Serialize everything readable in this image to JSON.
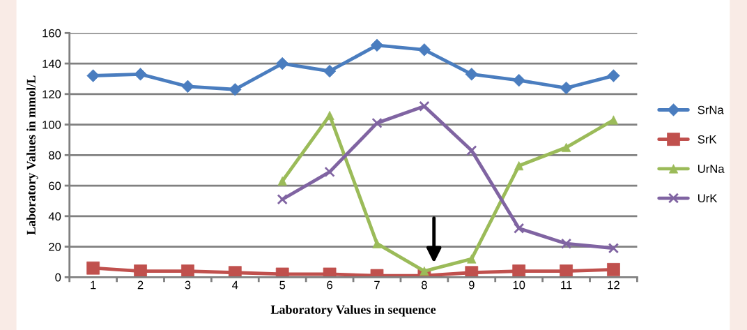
{
  "chart_data": {
    "type": "line",
    "xlabel": "Laboratory Values in sequence",
    "ylabel": "Laboratory Values in mmol/L",
    "categories": [
      "1",
      "2",
      "3",
      "4",
      "5",
      "6",
      "7",
      "8",
      "9",
      "10",
      "11",
      "12"
    ],
    "series": [
      {
        "name": "SrNa",
        "color": "#4a7dbf",
        "marker": "diamond",
        "values": [
          132,
          133,
          125,
          123,
          140,
          135,
          152,
          149,
          133,
          129,
          124,
          132
        ]
      },
      {
        "name": "SrK",
        "color": "#c0504d",
        "marker": "square",
        "values": [
          6,
          4,
          4,
          3,
          2,
          2,
          1,
          1,
          3,
          4,
          4,
          5
        ]
      },
      {
        "name": "UrNa",
        "color": "#9bbb59",
        "marker": "triangle",
        "values": [
          null,
          null,
          null,
          null,
          63,
          106,
          22,
          4,
          12,
          73,
          85,
          103
        ]
      },
      {
        "name": "UrK",
        "color": "#8064a2",
        "marker": "cross",
        "values": [
          null,
          null,
          null,
          null,
          51,
          69,
          101,
          112,
          83,
          32,
          22,
          19
        ]
      }
    ],
    "ylim": [
      0,
      160
    ],
    "yticks": [
      0,
      20,
      40,
      60,
      80,
      100,
      120,
      140,
      160
    ],
    "grid": "y",
    "legend": "right",
    "line_style": "solid"
  }
}
